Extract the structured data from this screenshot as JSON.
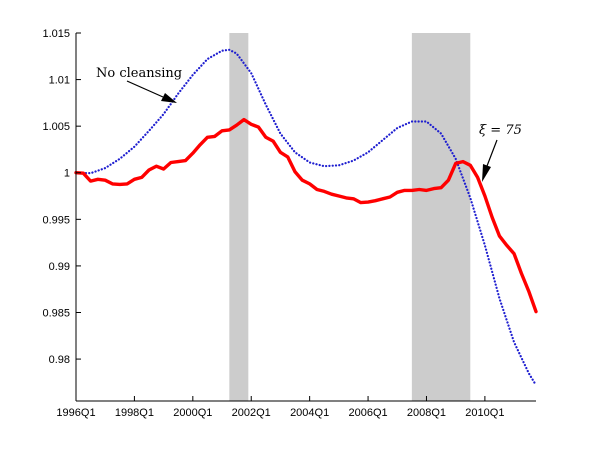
{
  "chart_data": {
    "type": "line",
    "title": "",
    "xlabel": "",
    "ylabel": "",
    "xlim": [
      1996.0,
      2011.75
    ],
    "ylim": [
      0.9755,
      1.015
    ],
    "x_ticks": [
      {
        "x": 1996.0,
        "label": "1996Q1"
      },
      {
        "x": 1998.0,
        "label": "1998Q1"
      },
      {
        "x": 2000.0,
        "label": "2000Q1"
      },
      {
        "x": 2002.0,
        "label": "2002Q1"
      },
      {
        "x": 2004.0,
        "label": "2004Q1"
      },
      {
        "x": 2006.0,
        "label": "2006Q1"
      },
      {
        "x": 2008.0,
        "label": "2008Q1"
      },
      {
        "x": 2010.0,
        "label": "2010Q1"
      }
    ],
    "y_ticks": [
      {
        "y": 0.98,
        "label": "0.98"
      },
      {
        "y": 0.985,
        "label": "0.985"
      },
      {
        "y": 0.99,
        "label": "0.99"
      },
      {
        "y": 0.995,
        "label": "0.995"
      },
      {
        "y": 1.0,
        "label": "1"
      },
      {
        "y": 1.005,
        "label": "1.005"
      },
      {
        "y": 1.01,
        "label": "1.01"
      },
      {
        "y": 1.015,
        "label": "1.015"
      }
    ],
    "shaded_regions": [
      {
        "start": 2001.25,
        "end": 2001.9
      },
      {
        "start": 2007.5,
        "end": 2009.5
      }
    ],
    "series": [
      {
        "style": "dotted",
        "color": "#1f1fd0",
        "points": [
          [
            1996.0,
            1.0
          ],
          [
            1996.5,
            0.99995
          ],
          [
            1997.0,
            1.0005
          ],
          [
            1997.5,
            1.0015
          ],
          [
            1998.0,
            1.0028
          ],
          [
            1998.5,
            1.0045
          ],
          [
            1999.0,
            1.0063
          ],
          [
            1999.5,
            1.0085
          ],
          [
            2000.0,
            1.0105
          ],
          [
            2000.5,
            1.0122
          ],
          [
            2001.0,
            1.0131
          ],
          [
            2001.25,
            1.0132
          ],
          [
            2001.5,
            1.0128
          ],
          [
            2002.0,
            1.0107
          ],
          [
            2002.5,
            1.0073
          ],
          [
            2003.0,
            1.0042
          ],
          [
            2003.5,
            1.0022
          ],
          [
            2004.0,
            1.0011
          ],
          [
            2004.5,
            1.0007
          ],
          [
            2005.0,
            1.0008
          ],
          [
            2005.5,
            1.0013
          ],
          [
            2006.0,
            1.0022
          ],
          [
            2006.5,
            1.0035
          ],
          [
            2007.0,
            1.0048
          ],
          [
            2007.5,
            1.0055
          ],
          [
            2008.0,
            1.0055
          ],
          [
            2008.5,
            1.0042
          ],
          [
            2009.0,
            1.0015
          ],
          [
            2009.5,
            0.9973
          ],
          [
            2010.0,
            0.9922
          ],
          [
            2010.5,
            0.9865
          ],
          [
            2011.0,
            0.9818
          ],
          [
            2011.5,
            0.9785
          ],
          [
            2011.75,
            0.9772
          ]
        ]
      },
      {
        "style": "solid",
        "color": "#ff0000",
        "points": [
          [
            1996.0,
            1.0
          ],
          [
            1996.25,
            0.99995
          ],
          [
            1996.5,
            0.9991
          ],
          [
            1996.75,
            0.9993
          ],
          [
            1997.0,
            0.9992
          ],
          [
            1997.25,
            0.9988
          ],
          [
            1997.5,
            0.99875
          ],
          [
            1997.75,
            0.9988
          ],
          [
            1998.0,
            0.9993
          ],
          [
            1998.25,
            0.9995
          ],
          [
            1998.5,
            1.0003
          ],
          [
            1998.75,
            1.0007
          ],
          [
            1999.0,
            1.0004
          ],
          [
            1999.25,
            1.0011
          ],
          [
            1999.5,
            1.0012
          ],
          [
            1999.75,
            1.0013
          ],
          [
            2000.0,
            1.0021
          ],
          [
            2000.25,
            1.003
          ],
          [
            2000.5,
            1.0038
          ],
          [
            2000.75,
            1.0039
          ],
          [
            2001.0,
            1.0045
          ],
          [
            2001.25,
            1.0046
          ],
          [
            2001.5,
            1.0051
          ],
          [
            2001.75,
            1.0057
          ],
          [
            2002.0,
            1.0052
          ],
          [
            2002.25,
            1.0049
          ],
          [
            2002.5,
            1.0038
          ],
          [
            2002.75,
            1.0034
          ],
          [
            2003.0,
            1.0022
          ],
          [
            2003.25,
            1.0017
          ],
          [
            2003.5,
            1.0001
          ],
          [
            2003.75,
            0.9992
          ],
          [
            2004.0,
            0.9988
          ],
          [
            2004.25,
            0.9982
          ],
          [
            2004.5,
            0.998
          ],
          [
            2004.75,
            0.9977
          ],
          [
            2005.0,
            0.9975
          ],
          [
            2005.25,
            0.9973
          ],
          [
            2005.5,
            0.9972
          ],
          [
            2005.75,
            0.9968
          ],
          [
            2006.0,
            0.99685
          ],
          [
            2006.25,
            0.997
          ],
          [
            2006.5,
            0.9972
          ],
          [
            2006.75,
            0.9974
          ],
          [
            2007.0,
            0.9979
          ],
          [
            2007.25,
            0.9981
          ],
          [
            2007.5,
            0.9981
          ],
          [
            2007.75,
            0.9982
          ],
          [
            2008.0,
            0.9981
          ],
          [
            2008.25,
            0.9983
          ],
          [
            2008.5,
            0.9984
          ],
          [
            2008.75,
            0.9992
          ],
          [
            2009.0,
            1.001
          ],
          [
            2009.25,
            1.0012
          ],
          [
            2009.5,
            1.0008
          ],
          [
            2009.75,
            0.9995
          ],
          [
            2010.0,
            0.9975
          ],
          [
            2010.25,
            0.9952
          ],
          [
            2010.5,
            0.9932
          ],
          [
            2010.75,
            0.9922
          ],
          [
            2011.0,
            0.9913
          ],
          [
            2011.25,
            0.9892
          ],
          [
            2011.5,
            0.9873
          ],
          [
            2011.75,
            0.9851
          ]
        ]
      }
    ],
    "annotations": [
      {
        "text": "No cleansing",
        "kind": "plain"
      },
      {
        "text": "ξ = 75",
        "kind": "math"
      }
    ]
  }
}
